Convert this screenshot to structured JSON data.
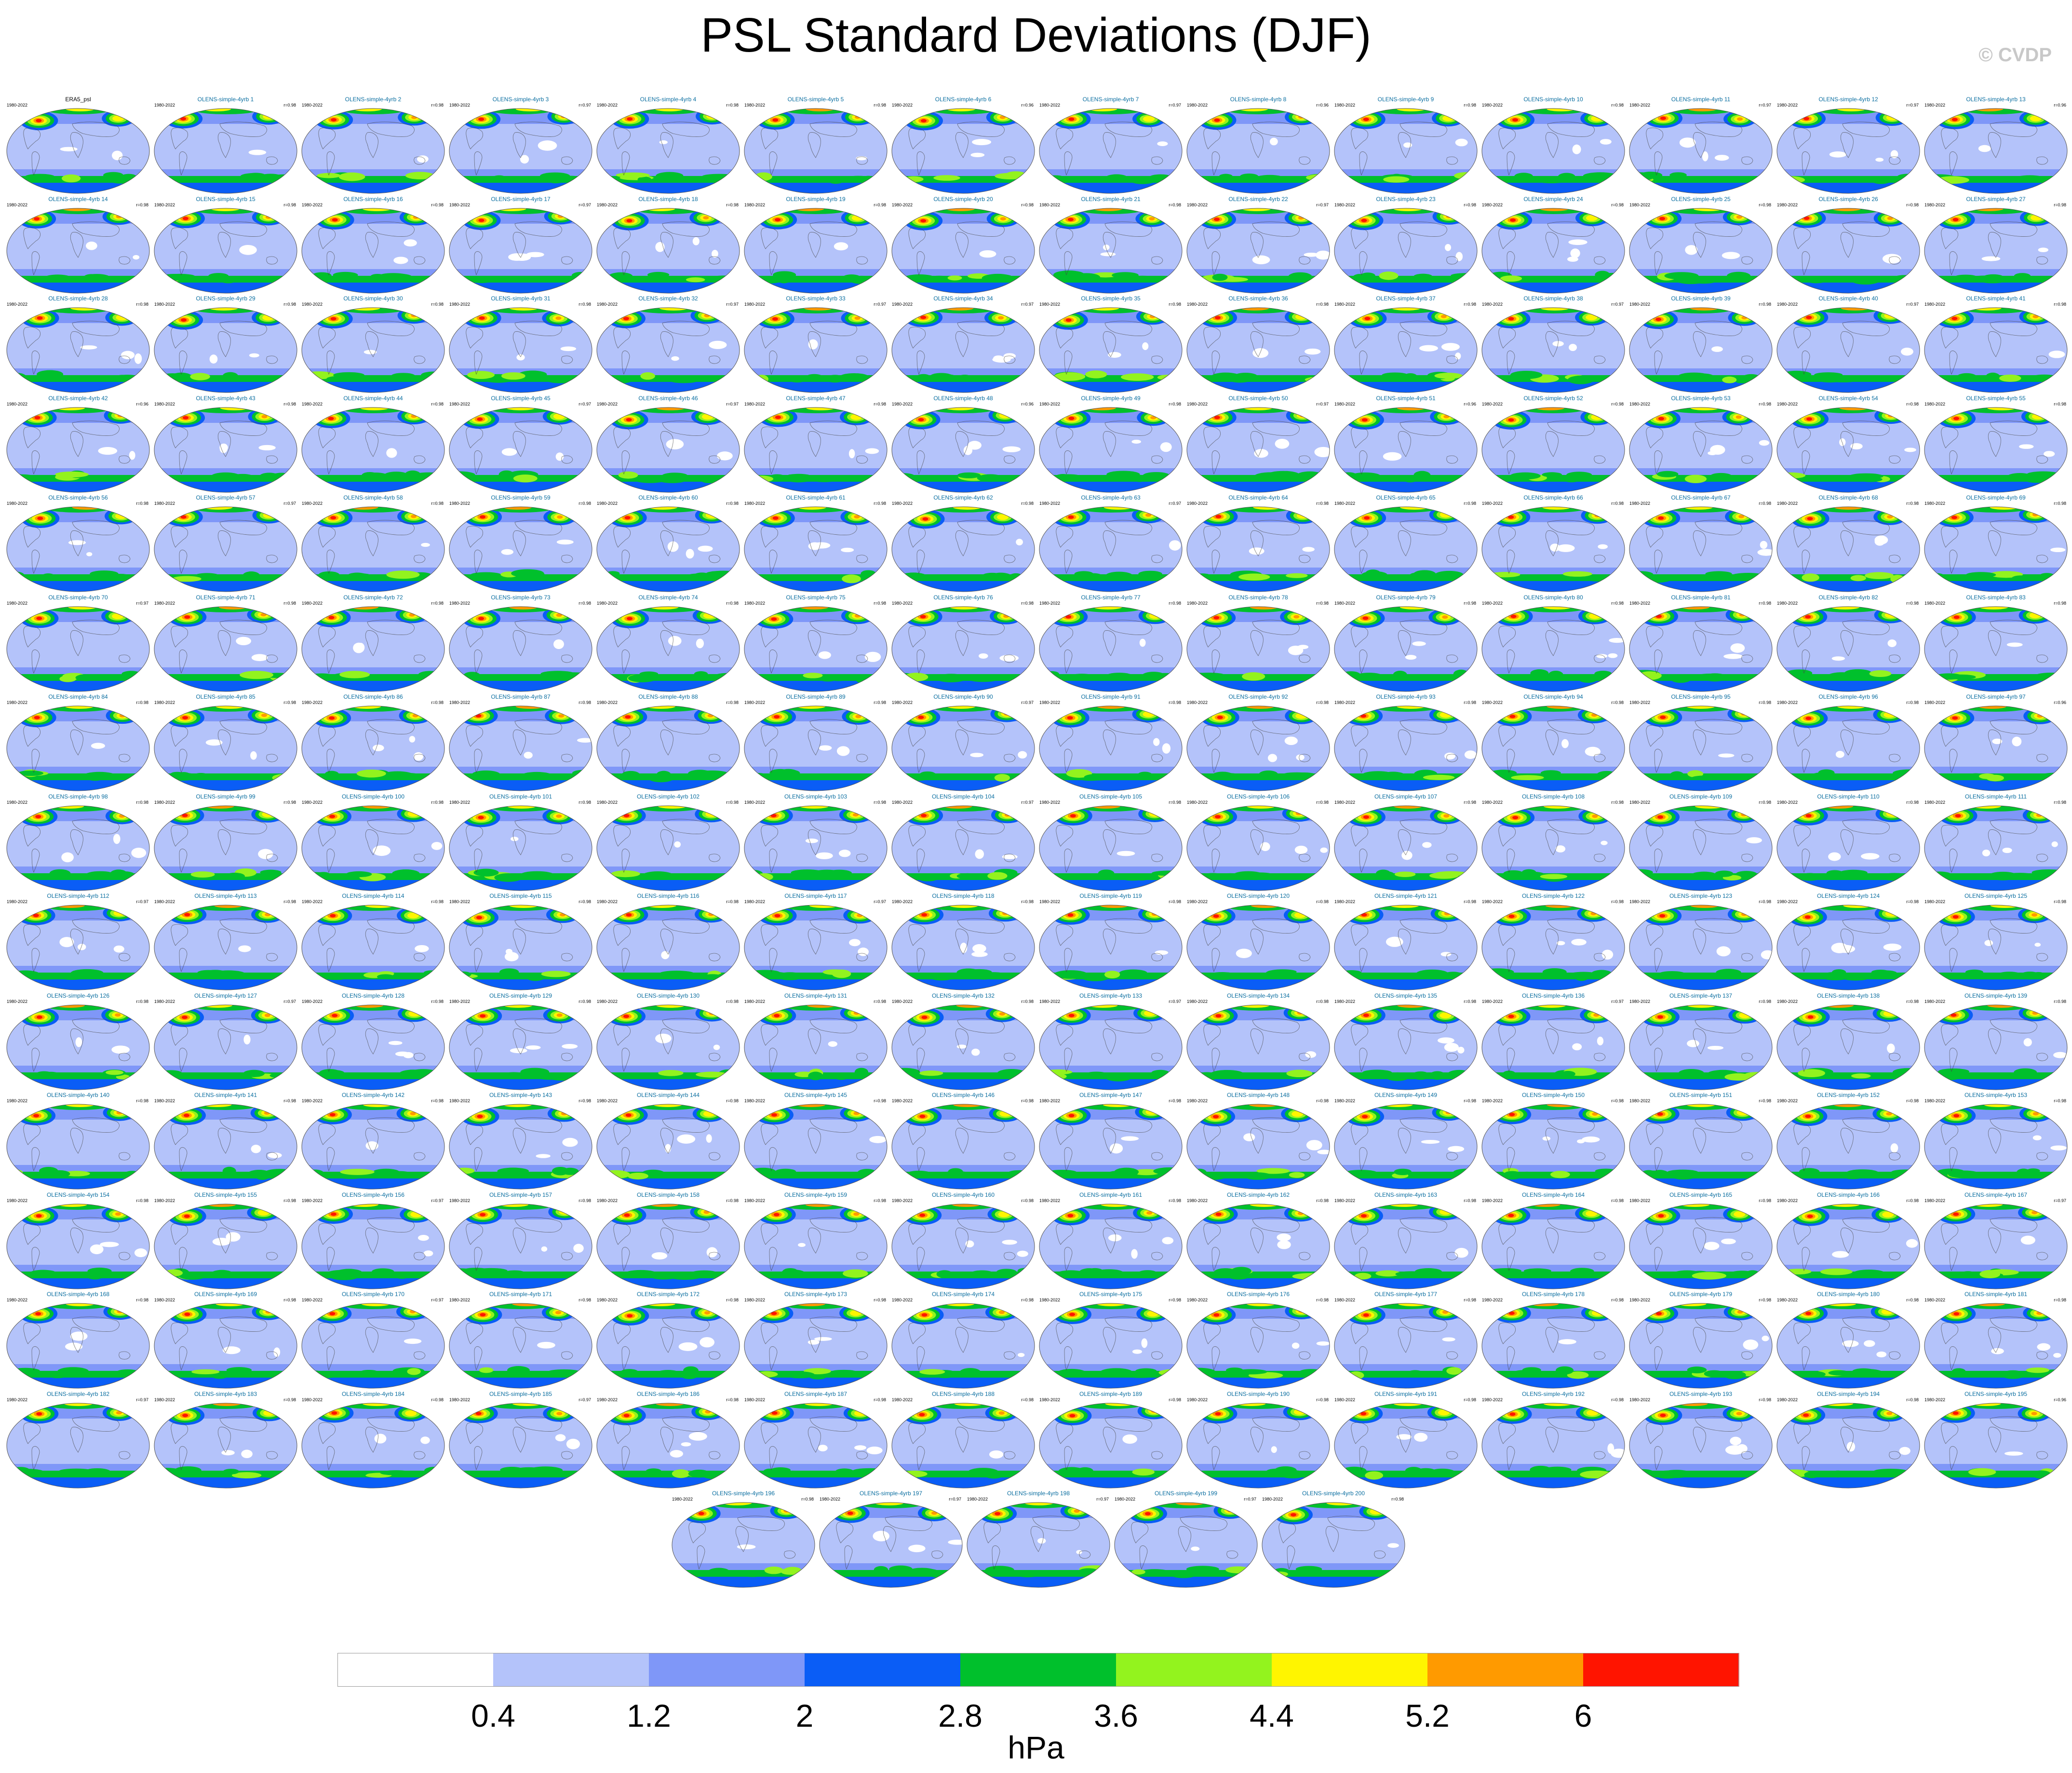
{
  "title": "PSL Standard Deviations (DJF)",
  "copyright": "© CVDP",
  "chart_data": {
    "type": "heatmap",
    "title": "PSL Standard Deviations (DJF)",
    "variable": "PSL",
    "season": "DJF",
    "projection": "global map (elliptical)",
    "reference": {
      "label": "ERA5_psl",
      "years": "1980-2022"
    },
    "members_prefix": "OLENS-simple-4yrb",
    "member_years": "1980-2022",
    "member_count": 200,
    "member_correlations": [
      "r=0.98",
      "r=0.98",
      "r=0.97",
      "r=0.98",
      "r=0.98",
      "r=0.96",
      "r=0.97",
      "r=0.96",
      "r=0.98",
      "r=0.98",
      "r=0.97",
      "r=0.97",
      "r=0.96",
      "r=0.98",
      "r=0.98",
      "r=0.98",
      "r=0.97",
      "r=0.98",
      "r=0.98",
      "r=0.98",
      "r=0.98",
      "r=0.97",
      "r=0.98",
      "r=0.98",
      "r=0.98",
      "r=0.98",
      "r=0.98",
      "r=0.98",
      "r=0.98",
      "r=0.98",
      "r=0.98",
      "r=0.97",
      "r=0.97",
      "r=0.97",
      "r=0.98",
      "r=0.98",
      "r=0.98",
      "r=0.97",
      "r=0.98",
      "r=0.97",
      "r=0.98",
      "r=0.96",
      "r=0.98",
      "r=0.98",
      "r=0.97",
      "r=0.97",
      "r=0.98",
      "r=0.96",
      "r=0.98",
      "r=0.97",
      "r=0.96",
      "r=0.98",
      "r=0.98",
      "r=0.98",
      "r=0.98",
      "r=0.98",
      "r=0.97",
      "r=0.98",
      "r=0.98",
      "r=0.98",
      "r=0.98",
      "r=0.98",
      "r=0.97",
      "r=0.98",
      "r=0.98",
      "r=0.98",
      "r=0.98",
      "r=0.98",
      "r=0.98",
      "r=0.97",
      "r=0.98",
      "r=0.98",
      "r=0.98",
      "r=0.98",
      "r=0.98",
      "r=0.98",
      "r=0.98",
      "r=0.98",
      "r=0.98",
      "r=0.98",
      "r=0.98",
      "r=0.98",
      "r=0.98",
      "r=0.98",
      "r=0.98",
      "r=0.98",
      "r=0.98",
      "r=0.98",
      "r=0.98",
      "r=0.97",
      "r=0.98",
      "r=0.98",
      "r=0.98",
      "r=0.98",
      "r=0.98",
      "r=0.98",
      "r=0.96",
      "r=0.98",
      "r=0.98",
      "r=0.98",
      "r=0.98",
      "r=0.98",
      "r=0.98",
      "r=0.97",
      "r=0.98",
      "r=0.98",
      "r=0.98",
      "r=0.98",
      "r=0.98",
      "r=0.98",
      "r=0.98",
      "r=0.97",
      "r=0.98",
      "r=0.98",
      "r=0.98",
      "r=0.98",
      "r=0.97",
      "r=0.98",
      "r=0.98",
      "r=0.98",
      "r=0.98",
      "r=0.98",
      "r=0.98",
      "r=0.98",
      "r=0.98",
      "r=0.98",
      "r=0.97",
      "r=0.98",
      "r=0.98",
      "r=0.98",
      "r=0.98",
      "r=0.98",
      "r=0.97",
      "r=0.98",
      "r=0.98",
      "r=0.97",
      "r=0.98",
      "r=0.98",
      "r=0.98",
      "r=0.98",
      "r=0.98",
      "r=0.98",
      "r=0.98",
      "r=0.98",
      "r=0.98",
      "r=0.98",
      "r=0.98",
      "r=0.98",
      "r=0.98",
      "r=0.98",
      "r=0.98",
      "r=0.98",
      "r=0.98",
      "r=0.98",
      "r=0.98",
      "r=0.97",
      "r=0.98",
      "r=0.98",
      "r=0.98",
      "r=0.98",
      "r=0.98",
      "r=0.98",
      "r=0.98",
      "r=0.98",
      "r=0.98",
      "r=0.98",
      "r=0.97",
      "r=0.98",
      "r=0.98",
      "r=0.97",
      "r=0.98",
      "r=0.98",
      "r=0.98",
      "r=0.98",
      "r=0.98",
      "r=0.98",
      "r=0.98",
      "r=0.98",
      "r=0.98",
      "r=0.98",
      "r=0.98",
      "r=0.97",
      "r=0.98",
      "r=0.98",
      "r=0.97",
      "r=0.98",
      "r=0.98",
      "r=0.98",
      "r=0.98",
      "r=0.98",
      "r=0.98",
      "r=0.98",
      "r=0.98",
      "r=0.98",
      "r=0.96",
      "r=0.98",
      "r=0.97",
      "r=0.97",
      "r=0.97",
      "r=0.98"
    ],
    "colorbar": {
      "levels": [
        0.4,
        1.2,
        2,
        2.8,
        3.6,
        4.4,
        5.2,
        6
      ],
      "labels": [
        "0.4",
        "1.2",
        "2",
        "2.8",
        "3.6",
        "4.4",
        "5.2",
        "6"
      ],
      "colors": [
        "#ffffff",
        "#b4c3fa",
        "#7f97f8",
        "#0a5df6",
        "#00c02c",
        "#93f31e",
        "#fff500",
        "#ff9a00",
        "#ff1400"
      ],
      "units": "hPa"
    }
  }
}
